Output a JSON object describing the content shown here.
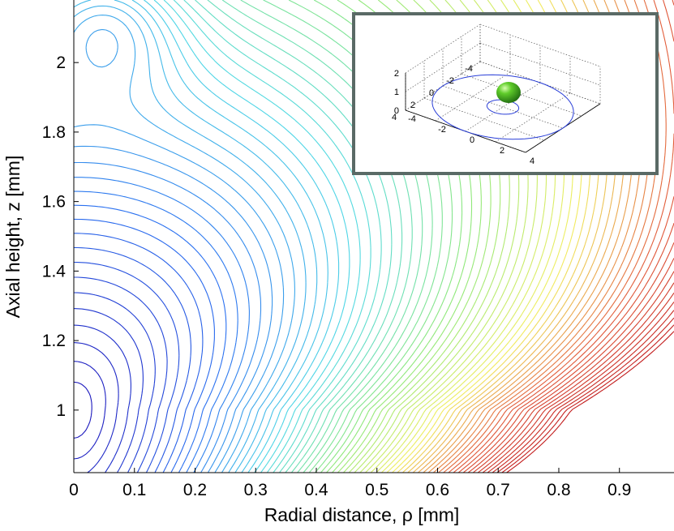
{
  "chart_data": [
    {
      "type": "contour",
      "title": "",
      "xlabel": "Radial distance, ρ [mm]",
      "ylabel": "Axial height, z [mm]",
      "xlim": [
        0,
        0.99
      ],
      "ylim": [
        0.82,
        2.18
      ],
      "xticks": [
        0,
        0.1,
        0.2,
        0.3,
        0.4,
        0.5,
        0.6,
        0.7,
        0.8,
        0.9
      ],
      "xtick_labels": [
        "0",
        "0.1",
        "0.2",
        "0.3",
        "0.4",
        "0.5",
        "0.6",
        "0.7",
        "0.8",
        "0.9"
      ],
      "yticks": [
        1,
        1.2,
        1.4,
        1.6,
        1.8,
        2
      ],
      "ytick_labels": [
        "1",
        "1.2",
        "1.4",
        "1.6",
        "1.8",
        "2"
      ],
      "potential_minimum": {
        "x": 0,
        "y": 1.0
      },
      "colormap": [
        "#1a10b8",
        "#2a6ef0",
        "#4fd8e6",
        "#8fe87a",
        "#f2ee60",
        "#e25a3a",
        "#c21b1b"
      ],
      "grid": false
    },
    {
      "type": "3d-inset",
      "description_visible": true,
      "x_ticks": [
        "-4",
        "-2",
        "0",
        "2",
        "4"
      ],
      "y_ticks": [
        "-4",
        "-2",
        "0",
        "2",
        "4"
      ],
      "z_ticks": [
        "0",
        "1",
        "2"
      ],
      "rings": [
        {
          "radius": 4.0,
          "color": "#2a3fd8"
        },
        {
          "radius": 0.9,
          "color": "#2a3fd8"
        }
      ],
      "particle": {
        "x": 0,
        "y": 0,
        "z": 1.0,
        "color": "#3fb020"
      }
    }
  ]
}
